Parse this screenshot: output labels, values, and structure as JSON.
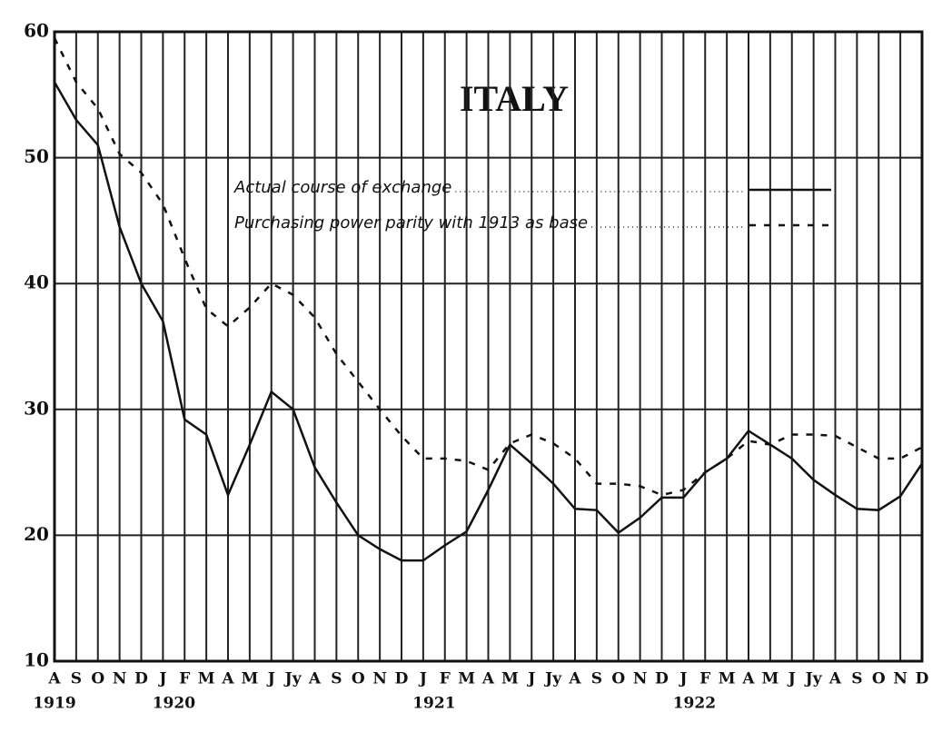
{
  "chart_data": {
    "type": "line",
    "title": "ITALY",
    "categories": [
      "A",
      "S",
      "O",
      "N",
      "D",
      "J",
      "F",
      "M",
      "A",
      "M",
      "J",
      "Jy",
      "A",
      "S",
      "O",
      "N",
      "D",
      "J",
      "F",
      "M",
      "A",
      "M",
      "J",
      "Jy",
      "A",
      "S",
      "O",
      "N",
      "D",
      "J",
      "F",
      "M",
      "A",
      "M",
      "J",
      "Jy",
      "A",
      "S",
      "O",
      "N",
      "D"
    ],
    "year_categories": [
      "1919",
      null,
      null,
      null,
      null,
      "1920",
      null,
      null,
      null,
      null,
      null,
      null,
      null,
      null,
      null,
      null,
      null,
      "1921",
      null,
      null,
      null,
      null,
      null,
      null,
      null,
      null,
      null,
      null,
      null,
      "1922",
      null,
      null,
      null,
      null,
      null,
      null,
      null,
      null,
      null,
      null,
      null
    ],
    "series": [
      {
        "name": "Actual course of exchange",
        "color": "#111111",
        "line_style": "solid",
        "values": [
          56,
          53,
          51,
          44.5,
          40,
          37,
          29.2,
          28,
          23.2,
          27.2,
          31.4,
          30,
          25.4,
          22.6,
          20,
          18.9,
          18,
          18,
          19.2,
          20.3,
          23.6,
          27.2,
          25.7,
          24.1,
          22.1,
          22,
          20.2,
          21.4,
          23,
          23,
          25,
          26.1,
          28.3,
          27.2,
          26.1,
          24.4,
          23.2,
          22.1,
          22,
          23.1,
          25.7
        ]
      },
      {
        "name": "Purchasing power parity with 1913 as base",
        "color": "#111111",
        "line_style": "dashed",
        "values": [
          59.5,
          56,
          53.9,
          50.3,
          48.8,
          46.3,
          42,
          38,
          36.6,
          38.1,
          40,
          39.1,
          37.3,
          34.4,
          32.2,
          30,
          27.9,
          26.1,
          26.1,
          25.9,
          25.2,
          27.3,
          28,
          27.3,
          26.1,
          24.1,
          24.1,
          23.9,
          23.2,
          23.6,
          25,
          26.1,
          27.5,
          27.2,
          28,
          28,
          27.9,
          27,
          26.1,
          26.1,
          27
        ]
      }
    ],
    "ylim": [
      10,
      60
    ],
    "yticks": [
      10,
      20,
      30,
      40,
      50,
      60
    ],
    "grid": true
  }
}
